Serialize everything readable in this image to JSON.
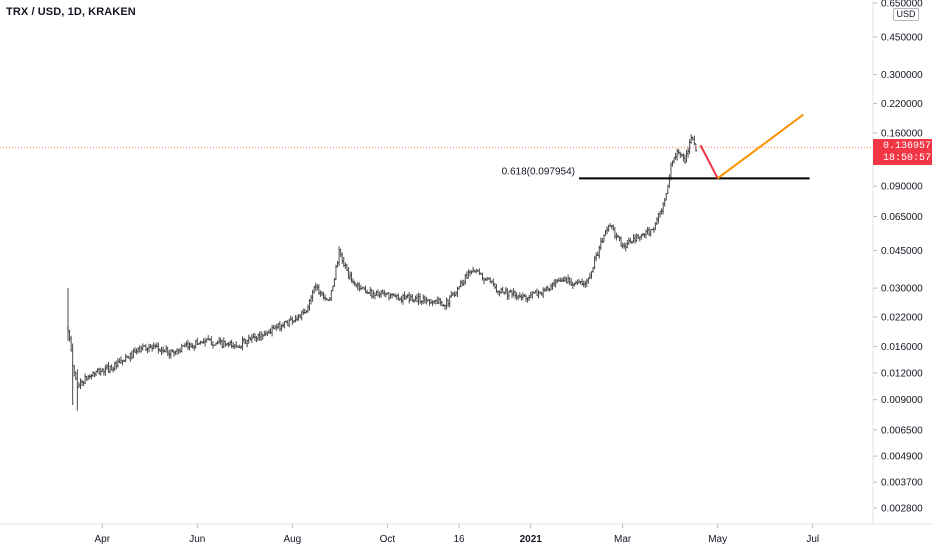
{
  "header": {
    "title": "TRX / USD, 1D, KRAKEN"
  },
  "price_axis": {
    "currency": "USD",
    "last_price": "0.136957",
    "countdown": "18:50:57",
    "last_price_color": "#f23645"
  },
  "fib_level": {
    "label": "0.618(0.097954)",
    "value": 0.097954
  },
  "colors": {
    "bars": "#4a4a4a",
    "red_line": "#f23645",
    "orange_line": "#ff9100",
    "fib_line": "#000000",
    "price_dotted": "#f57c5a"
  },
  "chart_data": {
    "type": "ohlc-bar",
    "scale": "log",
    "title": "TRX / USD, 1D, KRAKEN",
    "ylim": [
      0.0024,
      0.65
    ],
    "y_ticks": [
      {
        "value": 0.65,
        "label": "0.650000"
      },
      {
        "value": 0.45,
        "label": "0.450000"
      },
      {
        "value": 0.3,
        "label": "0.300000"
      },
      {
        "value": 0.22,
        "label": "0.220000"
      },
      {
        "value": 0.16,
        "label": "0.160000"
      },
      {
        "value": 0.09,
        "label": "0.090000"
      },
      {
        "value": 0.065,
        "label": "0.065000"
      },
      {
        "value": 0.045,
        "label": "0.045000"
      },
      {
        "value": 0.03,
        "label": "0.030000"
      },
      {
        "value": 0.022,
        "label": "0.022000"
      },
      {
        "value": 0.016,
        "label": "0.016000"
      },
      {
        "value": 0.012,
        "label": "0.012000"
      },
      {
        "value": 0.009,
        "label": "0.009000"
      },
      {
        "value": 0.0065,
        "label": "0.006500"
      },
      {
        "value": 0.0049,
        "label": "0.004900"
      },
      {
        "value": 0.0037,
        "label": "0.003700"
      },
      {
        "value": 0.0028,
        "label": "0.002800"
      }
    ],
    "x_ticks": [
      {
        "label": "Apr",
        "bold": false
      },
      {
        "label": "Jun",
        "bold": false
      },
      {
        "label": "Aug",
        "bold": false
      },
      {
        "label": "Oct",
        "bold": false
      },
      {
        "label": "16",
        "bold": false
      },
      {
        "label": "2021",
        "bold": true
      },
      {
        "label": "Mar",
        "bold": false
      },
      {
        "label": "May",
        "bold": false
      },
      {
        "label": "Jul",
        "bold": false
      }
    ],
    "anchors": [
      {
        "date": "2020-03-10",
        "close": 0.0195,
        "high": 0.03,
        "low": 0.017
      },
      {
        "date": "2020-03-13",
        "close": 0.013,
        "high": 0.0165,
        "low": 0.0085
      },
      {
        "date": "2020-03-16",
        "close": 0.0105,
        "high": 0.0125,
        "low": 0.008
      },
      {
        "date": "2020-03-25",
        "close": 0.0118
      },
      {
        "date": "2020-04-10",
        "close": 0.013
      },
      {
        "date": "2020-04-28",
        "close": 0.016
      },
      {
        "date": "2020-05-15",
        "close": 0.015
      },
      {
        "date": "2020-06-05",
        "close": 0.017
      },
      {
        "date": "2020-06-25",
        "close": 0.016
      },
      {
        "date": "2020-07-15",
        "close": 0.0185
      },
      {
        "date": "2020-07-30",
        "close": 0.021
      },
      {
        "date": "2020-08-10",
        "close": 0.023
      },
      {
        "date": "2020-08-15",
        "close": 0.031
      },
      {
        "date": "2020-08-25",
        "close": 0.026
      },
      {
        "date": "2020-08-31",
        "close": 0.044
      },
      {
        "date": "2020-09-08",
        "close": 0.032
      },
      {
        "date": "2020-09-20",
        "close": 0.0285
      },
      {
        "date": "2020-10-10",
        "close": 0.027
      },
      {
        "date": "2020-10-25",
        "close": 0.0265
      },
      {
        "date": "2020-11-08",
        "close": 0.0255
      },
      {
        "date": "2020-11-24",
        "close": 0.037
      },
      {
        "date": "2020-12-10",
        "close": 0.03
      },
      {
        "date": "2020-12-25",
        "close": 0.027
      },
      {
        "date": "2021-01-10",
        "close": 0.029
      },
      {
        "date": "2021-01-22",
        "close": 0.033
      },
      {
        "date": "2021-02-05",
        "close": 0.031
      },
      {
        "date": "2021-02-20",
        "close": 0.06
      },
      {
        "date": "2021-03-01",
        "close": 0.047
      },
      {
        "date": "2021-03-20",
        "close": 0.056
      },
      {
        "date": "2021-03-28",
        "close": 0.075
      },
      {
        "date": "2021-04-01",
        "close": 0.11
      },
      {
        "date": "2021-04-05",
        "close": 0.135
      },
      {
        "date": "2021-04-10",
        "close": 0.115
      },
      {
        "date": "2021-04-14",
        "close": 0.155
      },
      {
        "date": "2021-04-17",
        "close": 0.137
      }
    ],
    "projection_red": [
      {
        "date": "2021-04-20",
        "value": 0.14
      },
      {
        "date": "2021-05-01",
        "value": 0.098
      }
    ],
    "projection_orange": [
      {
        "date": "2021-05-01",
        "value": 0.098
      },
      {
        "date": "2021-06-25",
        "value": 0.195
      }
    ],
    "fib_line_range": [
      "2021-02-01",
      "2021-06-29"
    ],
    "last_close": 0.136957
  }
}
